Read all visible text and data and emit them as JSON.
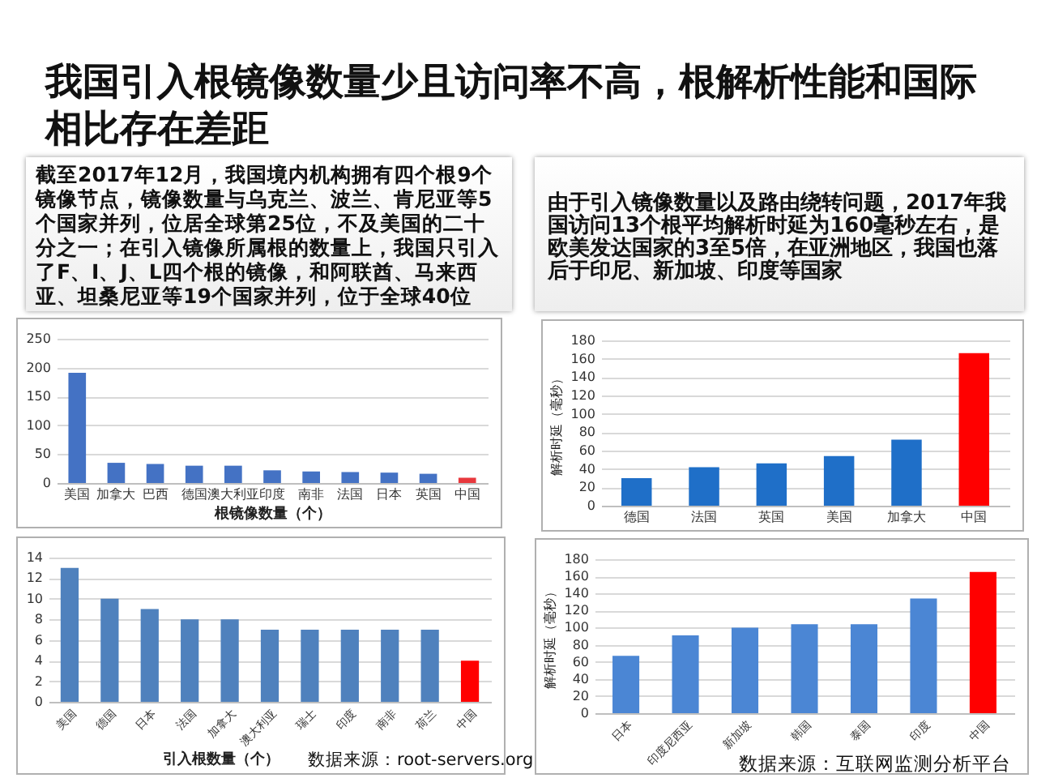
{
  "chart_data": [
    {
      "type": "other",
      "title": "我国引入根镜像数量少且访问率不高，根解析性能和国际相比存在差距",
      "annotations": [
        "截至2017年12月，我国境内机构拥有四个根9个镜像节点，镜像数量与乌克兰、波兰、肯尼亚等5个国家并列，位居全球第25位，不及美国的二十分之一；在引入镜像所属根的数量上，我国只引入了F、I、J、L四个根的镜像，和阿联酋、马来西亚、坦桑尼亚等19个国家并列，位于全球40位",
        "由于引入镜像数量以及路由绕转问题，2017年我国访问13个根平均解析时延为160毫秒左右，是欧美发达国家的3至5倍，在亚洲地区，我国也落后于印尼、新加坡、印度等国家"
      ]
    },
    {
      "type": "bar",
      "xlabel": "根镜像数量（个）",
      "categories": [
        "美国",
        "加拿大",
        "巴西",
        "德国",
        "澳大利亚",
        "印度",
        "南非",
        "法国",
        "日本",
        "英国",
        "中国"
      ],
      "values": [
        191,
        35,
        33,
        30,
        30,
        22,
        20,
        19,
        18,
        16,
        9
      ],
      "colors": [
        "#4472c4",
        "#4472c4",
        "#4472c4",
        "#4472c4",
        "#4472c4",
        "#4472c4",
        "#4472c4",
        "#4472c4",
        "#4472c4",
        "#4472c4",
        "#e8383d"
      ],
      "ylim": [
        0,
        250
      ],
      "yticks": [
        0,
        50,
        100,
        150,
        200,
        250
      ],
      "grid": "y"
    },
    {
      "type": "bar",
      "ylabel": "解析时延（毫秒）",
      "categories": [
        "德国",
        "法国",
        "英国",
        "美国",
        "加拿大",
        "中国"
      ],
      "values": [
        30,
        42,
        46,
        54,
        72,
        166
      ],
      "colors": [
        "#1f6fc8",
        "#1f6fc8",
        "#1f6fc8",
        "#1f6fc8",
        "#1f6fc8",
        "#ff0000"
      ],
      "ylim": [
        0,
        180
      ],
      "yticks": [
        0,
        20,
        40,
        60,
        80,
        100,
        120,
        140,
        160,
        180
      ],
      "grid": "y"
    },
    {
      "type": "bar",
      "xlabel": "引入根数量（个）",
      "categories": [
        "美国",
        "德国",
        "日本",
        "法国",
        "加拿大",
        "澳大利亚",
        "瑞士",
        "印度",
        "南非",
        "荷兰",
        "中国"
      ],
      "values": [
        13,
        10,
        9,
        8,
        8,
        7,
        7,
        7,
        7,
        7,
        4
      ],
      "colors": [
        "#4f81bd",
        "#4f81bd",
        "#4f81bd",
        "#4f81bd",
        "#4f81bd",
        "#4f81bd",
        "#4f81bd",
        "#4f81bd",
        "#4f81bd",
        "#4f81bd",
        "#ff0000"
      ],
      "ylim": [
        0,
        14
      ],
      "yticks": [
        0,
        2,
        4,
        6,
        8,
        10,
        12,
        14
      ],
      "grid": "y",
      "annotations": [
        "数据来源：root-servers.org"
      ]
    },
    {
      "type": "bar",
      "ylabel": "解析时延（毫秒）",
      "categories": [
        "日本",
        "印度尼西亚",
        "新加坡",
        "韩国",
        "泰国",
        "印度",
        "中国"
      ],
      "values": [
        67,
        91,
        100,
        104,
        104,
        134,
        165
      ],
      "colors": [
        "#4b86d4",
        "#4b86d4",
        "#4b86d4",
        "#4b86d4",
        "#4b86d4",
        "#4b86d4",
        "#ff0000"
      ],
      "ylim": [
        0,
        180
      ],
      "yticks": [
        0,
        20,
        40,
        60,
        80,
        100,
        120,
        140,
        160,
        180
      ],
      "grid": "y",
      "annotations": [
        "数据来源：互联网监测分析平台"
      ]
    }
  ]
}
